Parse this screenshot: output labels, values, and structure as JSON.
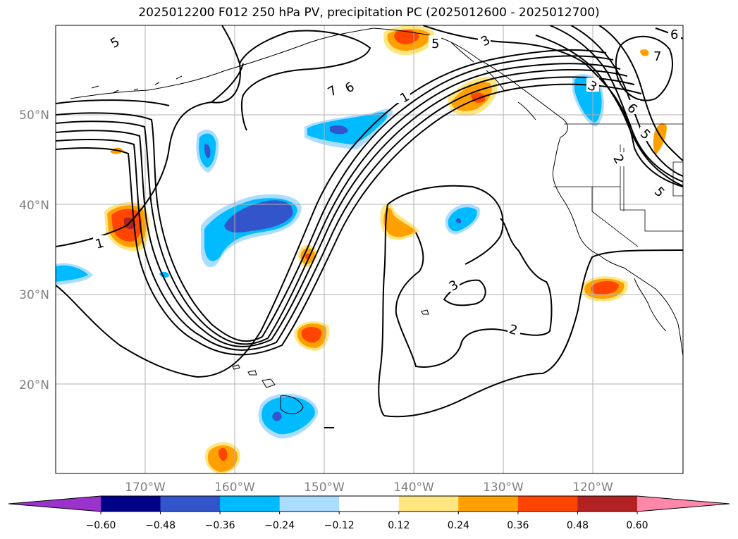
{
  "title": "2025012200 F012 250 hPa PV, precipitation PC (2025012600 - 2025012700)",
  "map": {
    "projection": "PlateCarree",
    "lon_range": [
      -180,
      -110
    ],
    "lat_range": [
      10,
      60
    ],
    "gridlines": true,
    "lat_labels": [
      "20°N",
      "30°N",
      "40°N",
      "50°N"
    ],
    "lon_labels": [
      "170°W",
      "160°W",
      "150°W",
      "140°W",
      "130°W",
      "120°W"
    ],
    "pv_contour_labels": [
      "5",
      "5",
      "3",
      "7",
      "6",
      "1",
      "3",
      "6",
      "5",
      "7",
      "6",
      "5",
      "2",
      "1",
      "3",
      "2"
    ]
  },
  "colorbar": {
    "extend": "both",
    "colors": [
      "#9933cc",
      "#000088",
      "#3355cc",
      "#00bbff",
      "#aaddff",
      "#ffffff",
      "#ffe680",
      "#ffa000",
      "#ff4500",
      "#b22222",
      "#ff88aa"
    ],
    "tick_labels": [
      "−0.60",
      "−0.48",
      "−0.36",
      "−0.24",
      "−0.12",
      "0.12",
      "0.24",
      "0.36",
      "0.48",
      "0.60"
    ]
  }
}
